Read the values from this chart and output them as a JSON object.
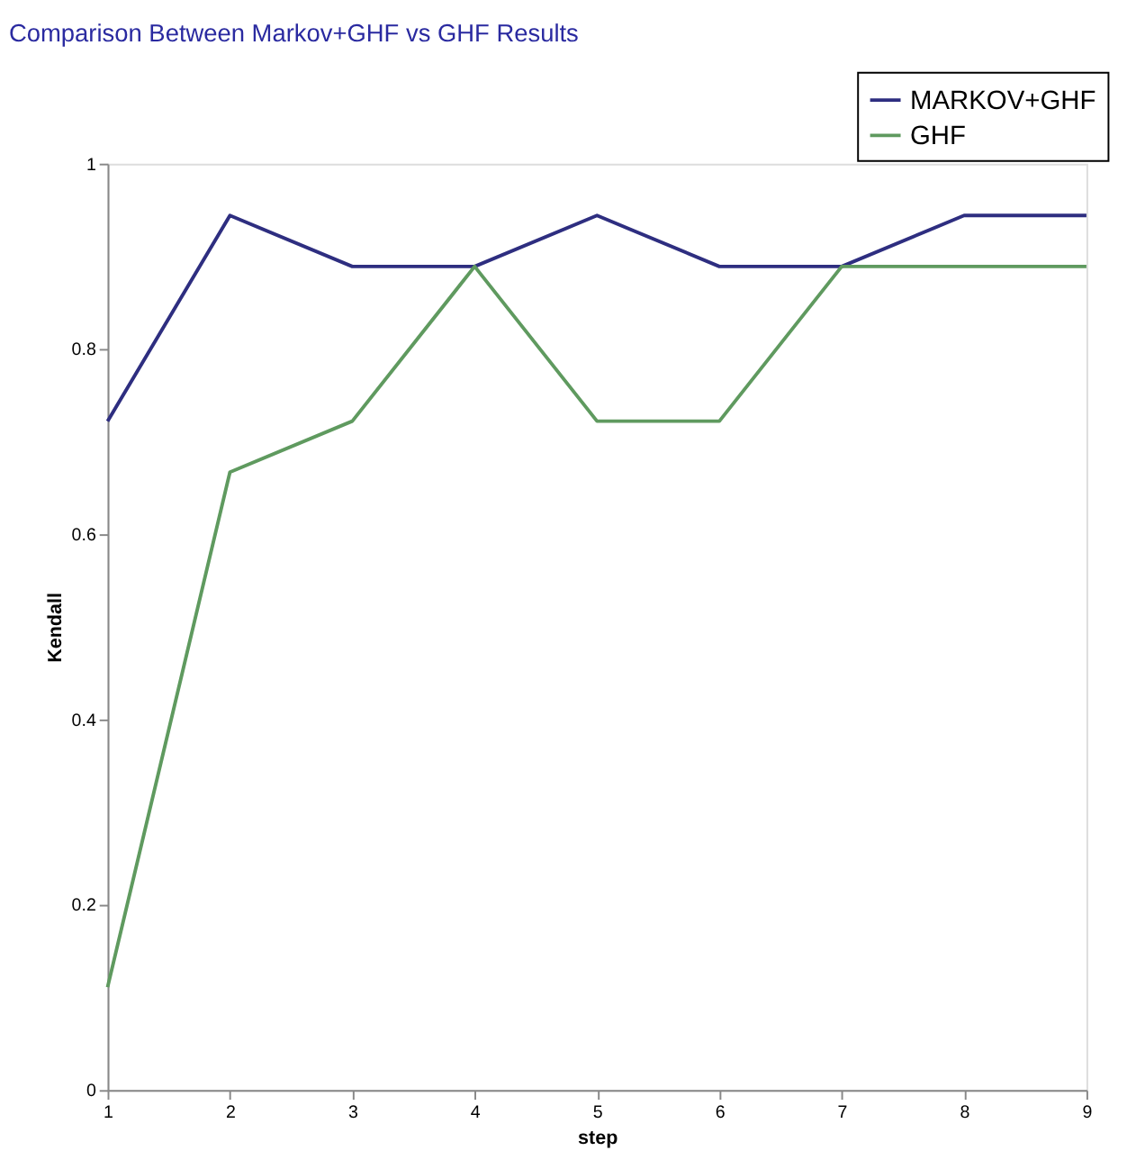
{
  "chart_data": {
    "type": "line",
    "title": "Comparison Between Markov+GHF vs GHF Results",
    "xlabel": "step",
    "ylabel": "Kendall",
    "x": [
      1,
      2,
      3,
      4,
      5,
      6,
      7,
      8,
      9
    ],
    "series": [
      {
        "name": "MARKOV+GHF",
        "color": "#2e2e80",
        "values": [
          0.722,
          0.944,
          0.889,
          0.889,
          0.944,
          0.889,
          0.889,
          0.944,
          0.944
        ]
      },
      {
        "name": "GHF",
        "color": "#5f9a5f",
        "values": [
          0.111,
          0.667,
          0.722,
          0.889,
          0.722,
          0.722,
          0.889,
          0.889,
          0.889
        ]
      }
    ],
    "xlim": [
      1,
      9
    ],
    "xticks": [
      1,
      2,
      3,
      4,
      5,
      6,
      7,
      8,
      9
    ],
    "ylim": [
      0,
      1
    ],
    "yticks": [
      0,
      0.2,
      0.4,
      0.6,
      0.8,
      1
    ],
    "grid": false,
    "legend": "top right",
    "marker": "none",
    "line_style": "solid"
  }
}
